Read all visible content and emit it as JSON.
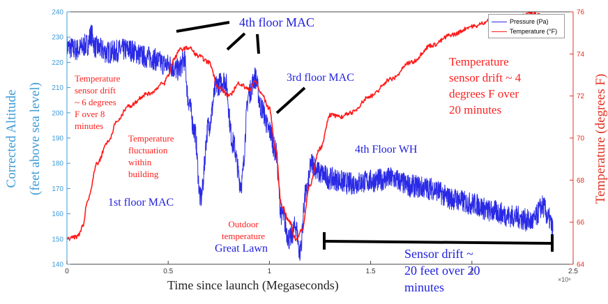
{
  "chart_data": {
    "type": "line",
    "xlabel": "Time since launch (Megaseconds)",
    "x_exponent_label": "×10⁶",
    "ylabel_left_line1": "Corrected Altitude",
    "ylabel_left_line2": "(feet above sea level)",
    "ylabel_right": "Temperature (degrees F)",
    "xlim": [
      0,
      2.5
    ],
    "ylim_left": [
      140,
      240
    ],
    "ylim_right": [
      64,
      76
    ],
    "x_ticks": [
      "0",
      "0.5",
      "1",
      "1.5",
      "2",
      "2.5"
    ],
    "x_tick_values": [
      0,
      0.5,
      1,
      1.5,
      2,
      2.5
    ],
    "y_left_ticks": [
      "140",
      "150",
      "160",
      "170",
      "180",
      "190",
      "200",
      "210",
      "220",
      "230",
      "240"
    ],
    "y_left_tick_values": [
      140,
      150,
      160,
      170,
      180,
      190,
      200,
      210,
      220,
      230,
      240
    ],
    "y_right_ticks": [
      "64",
      "66",
      "68",
      "70",
      "72",
      "74",
      "76"
    ],
    "y_right_tick_values": [
      64,
      66,
      68,
      70,
      72,
      74,
      76
    ],
    "legend_position": "top-right",
    "colors": {
      "pressure": "#2a2ae6",
      "temperature": "#ff1a1a",
      "left_axis": "#3d9ad6",
      "right_axis": "#e03020",
      "annotation_line": "#000000"
    },
    "series": [
      {
        "name": "Pressure (Pa)",
        "axis": "left",
        "noise": 4.5,
        "x": [
          0,
          0.05,
          0.1,
          0.12,
          0.14,
          0.2,
          0.3,
          0.4,
          0.5,
          0.55,
          0.58,
          0.6,
          0.63,
          0.66,
          0.7,
          0.74,
          0.78,
          0.82,
          0.86,
          0.9,
          0.93,
          0.96,
          1.0,
          1.03,
          1.06,
          1.1,
          1.13,
          1.15,
          1.18,
          1.21,
          1.25,
          1.3,
          1.4,
          1.5,
          1.6,
          1.7,
          1.8,
          1.9,
          2.0,
          2.1,
          2.2,
          2.3,
          2.35,
          2.38,
          2.4
        ],
        "y": [
          226,
          225,
          227,
          231,
          226,
          224,
          225,
          222,
          219,
          217,
          221,
          205,
          193,
          166,
          195,
          211,
          213,
          188,
          172,
          208,
          214,
          202,
          193,
          185,
          160,
          150,
          155,
          145,
          168,
          180,
          176,
          174,
          172,
          173,
          174,
          171,
          170,
          166,
          164,
          161,
          159,
          157,
          163,
          158,
          154
        ]
      },
      {
        "name": "Temperature (°F)",
        "axis": "right",
        "noise": 0.08,
        "x": [
          0,
          0.05,
          0.08,
          0.1,
          0.15,
          0.2,
          0.25,
          0.3,
          0.4,
          0.48,
          0.5,
          0.53,
          0.56,
          0.6,
          0.65,
          0.7,
          0.75,
          0.8,
          0.85,
          0.9,
          0.93,
          0.96,
          1.0,
          1.03,
          1.06,
          1.1,
          1.13,
          1.16,
          1.2,
          1.25,
          1.3,
          1.35,
          1.4,
          1.5,
          1.6,
          1.7,
          1.8,
          1.9,
          2.0,
          2.1,
          2.2,
          2.3,
          2.38
        ],
        "y": [
          65.2,
          65.3,
          65.8,
          67.0,
          68.8,
          69.8,
          70.8,
          71.5,
          72.1,
          72.6,
          73.0,
          73.8,
          74.2,
          74.3,
          73.9,
          73.6,
          72.4,
          72.0,
          72.6,
          72.3,
          72.7,
          72.1,
          71.4,
          69.5,
          66.8,
          66.0,
          65.2,
          65.6,
          67.8,
          69.5,
          71.1,
          71.0,
          71.2,
          72.0,
          72.8,
          73.6,
          74.4,
          74.9,
          75.3,
          75.6,
          75.7,
          75.9,
          75.7
        ]
      }
    ],
    "annotations": {
      "temp_drift_left_1": "Temperature",
      "temp_drift_left_2": "sensor drift",
      "temp_drift_left_3": "~ 6 degrees",
      "temp_drift_left_4": "F over 8",
      "temp_drift_left_5": "minutes",
      "temp_fluct_1": "Temperature",
      "temp_fluct_2": "fluctuation",
      "temp_fluct_3": "within",
      "temp_fluct_4": "building",
      "first_floor": "1st floor MAC",
      "fourth_floor_mac": "4th floor MAC",
      "third_floor_mac": "3rd floor MAC",
      "fourth_floor_wh": "4th Floor WH",
      "outdoor_1": "Outdoor",
      "outdoor_2": "temperature",
      "great_lawn": "Great Lawn",
      "temp_drift_right_1": "Temperature",
      "temp_drift_right_2": "sensor drift ~ 4",
      "temp_drift_right_3": "degrees F over",
      "temp_drift_right_4": "20 minutes",
      "sensor_drift_1": "Sensor drift ~",
      "sensor_drift_2": "20 feet over 20",
      "sensor_drift_3": "minutes"
    }
  }
}
